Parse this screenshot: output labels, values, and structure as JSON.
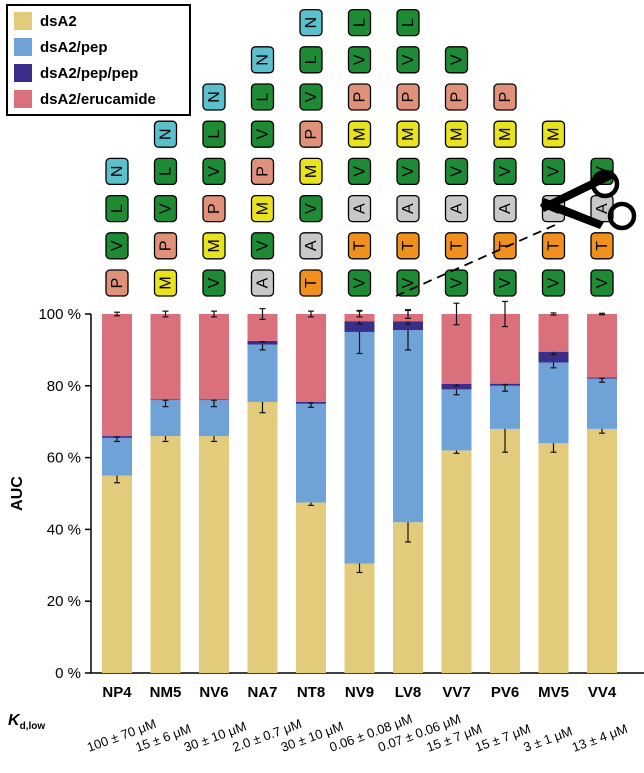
{
  "chart_data": {
    "type": "bar",
    "stacked": true,
    "ylabel": "AUC",
    "ylim": [
      0,
      100
    ],
    "yticks": [
      "0 %",
      "20 %",
      "40 %",
      "60 %",
      "80 %",
      "100 %"
    ],
    "categories": [
      "NP4",
      "NM5",
      "NV6",
      "NA7",
      "NT8",
      "NV9",
      "LV8",
      "VV7",
      "PV6",
      "MV5",
      "VV4"
    ],
    "kd_label_main": "K",
    "kd_label_sub": "d,low",
    "kd_values": [
      "100 ± 70 μM",
      "15 ± 6 μM",
      "30 ± 10 μM",
      "2.0 ± 0.7 μM",
      "30 ± 10 μM",
      "0.06 ± 0.08 μM",
      "0.07 ± 0.06 μM",
      "15 ± 7 μM",
      "15 ± 7 μM",
      "3 ± 1 μM",
      "13 ± 4 μM"
    ],
    "series": [
      {
        "name": "dsA2",
        "color": "#e2cc7b",
        "values": [
          55,
          66,
          66,
          75.5,
          47.5,
          30.5,
          42,
          62,
          68,
          64,
          68
        ],
        "errors": [
          2,
          1.5,
          1.5,
          3,
          0.8,
          2.5,
          5.5,
          0.8,
          6.5,
          2.5,
          1.2
        ]
      },
      {
        "name": "dsA2/pep",
        "color": "#6fa3d8",
        "values": [
          10.5,
          10,
          10,
          16,
          27.5,
          64.5,
          53.5,
          17,
          12,
          22.5,
          14
        ],
        "errors": [
          1,
          1.8,
          1.8,
          1.5,
          1,
          6,
          5.5,
          1.5,
          1.5,
          1.5,
          1
        ]
      },
      {
        "name": "dsA2/pep/pep",
        "color": "#3b2e8a",
        "values": [
          0.5,
          0.2,
          0.2,
          1,
          0.5,
          3,
          2.5,
          1.5,
          0.6,
          3,
          0.3
        ],
        "errors": [
          0.3,
          0.2,
          0.2,
          0.3,
          0.3,
          0.8,
          0.8,
          0.5,
          0.3,
          0.8,
          0.2
        ]
      },
      {
        "name": "dsA2/erucamide",
        "color": "#d9707c",
        "values": [
          34,
          23.8,
          23.8,
          7.5,
          24.5,
          2,
          2,
          19.5,
          19.4,
          10.5,
          17.7
        ],
        "errors": [
          0.5,
          0.8,
          0.8,
          1.5,
          0.8,
          0.8,
          1.2,
          3,
          3.5,
          0.3,
          0.2
        ]
      }
    ],
    "peptides": [
      [
        "N",
        "L",
        "V",
        "P"
      ],
      [
        "N",
        "L",
        "V",
        "P",
        "M"
      ],
      [
        "N",
        "L",
        "V",
        "P",
        "M",
        "V"
      ],
      [
        "N",
        "L",
        "V",
        "P",
        "M",
        "V",
        "A"
      ],
      [
        "N",
        "L",
        "V",
        "P",
        "M",
        "V",
        "A",
        "T"
      ],
      [
        "N",
        "L",
        "V",
        "P",
        "M",
        "V",
        "A",
        "T",
        "V"
      ],
      [
        "L",
        "V",
        "P",
        "M",
        "V",
        "A",
        "T",
        "V"
      ],
      [
        "V",
        "P",
        "M",
        "V",
        "A",
        "T",
        "V"
      ],
      [
        "P",
        "M",
        "V",
        "A",
        "T",
        "V"
      ],
      [
        "M",
        "V",
        "A",
        "T",
        "V"
      ],
      [
        "V",
        "A",
        "T",
        "V"
      ]
    ],
    "residue_colors": {
      "N": "#5bbfcc",
      "L": "#1e8a34",
      "V": "#1e8a34",
      "P": "#e0917a",
      "M": "#e8e21f",
      "A": "#c8c8c8",
      "T": "#f0901e"
    },
    "legend_position": "top-left",
    "grid": false
  }
}
